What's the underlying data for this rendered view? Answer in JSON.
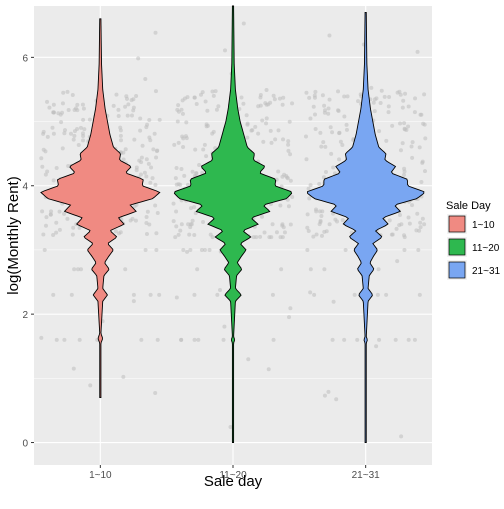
{
  "chart_data": {
    "type": "violin",
    "title": "",
    "xlabel": "Sale day",
    "ylabel": "log(Monthly Rent)",
    "categories": [
      "1~10",
      "11~20",
      "21~31"
    ],
    "ylim": [
      -0.35,
      6.8
    ],
    "yticks": [
      0,
      2,
      4,
      6
    ],
    "grid": true,
    "background": "#EBEBEB",
    "legend": {
      "title": "Sale Day",
      "position": "right",
      "entries": [
        "1~10",
        "11~20",
        "21~31"
      ]
    },
    "series": [
      {
        "category": "1~10",
        "color": "#F08A82",
        "min": 0.7,
        "max": 6.6,
        "width_profile": [
          [
            0.7,
            0.01
          ],
          [
            1.55,
            0.01
          ],
          [
            1.62,
            0.04
          ],
          [
            1.7,
            0.01
          ],
          [
            2.2,
            0.04
          ],
          [
            2.3,
            0.12
          ],
          [
            2.4,
            0.04
          ],
          [
            2.6,
            0.06
          ],
          [
            2.7,
            0.15
          ],
          [
            2.8,
            0.07
          ],
          [
            2.9,
            0.14
          ],
          [
            3.0,
            0.22
          ],
          [
            3.1,
            0.12
          ],
          [
            3.2,
            0.28
          ],
          [
            3.3,
            0.16
          ],
          [
            3.4,
            0.4
          ],
          [
            3.5,
            0.3
          ],
          [
            3.6,
            0.6
          ],
          [
            3.7,
            0.5
          ],
          [
            3.8,
            0.88
          ],
          [
            3.9,
            1.0
          ],
          [
            4.0,
            0.7
          ],
          [
            4.1,
            0.72
          ],
          [
            4.2,
            0.42
          ],
          [
            4.3,
            0.52
          ],
          [
            4.4,
            0.32
          ],
          [
            4.5,
            0.34
          ],
          [
            4.6,
            0.22
          ],
          [
            4.8,
            0.16
          ],
          [
            5.0,
            0.12
          ],
          [
            5.2,
            0.08
          ],
          [
            5.5,
            0.04
          ],
          [
            5.9,
            0.02
          ],
          [
            6.6,
            0.01
          ]
        ]
      },
      {
        "category": "11~20",
        "color": "#2EB84F",
        "min": 0.0,
        "max": 6.8,
        "width_profile": [
          [
            0.0,
            0.01
          ],
          [
            1.55,
            0.01
          ],
          [
            1.6,
            0.03
          ],
          [
            1.65,
            0.01
          ],
          [
            2.2,
            0.04
          ],
          [
            2.3,
            0.14
          ],
          [
            2.4,
            0.04
          ],
          [
            2.6,
            0.06
          ],
          [
            2.7,
            0.15
          ],
          [
            2.8,
            0.07
          ],
          [
            2.9,
            0.14
          ],
          [
            3.0,
            0.22
          ],
          [
            3.1,
            0.12
          ],
          [
            3.2,
            0.3
          ],
          [
            3.3,
            0.16
          ],
          [
            3.4,
            0.42
          ],
          [
            3.5,
            0.3
          ],
          [
            3.6,
            0.62
          ],
          [
            3.7,
            0.5
          ],
          [
            3.8,
            0.9
          ],
          [
            3.9,
            1.0
          ],
          [
            4.0,
            0.7
          ],
          [
            4.1,
            0.72
          ],
          [
            4.2,
            0.44
          ],
          [
            4.3,
            0.54
          ],
          [
            4.4,
            0.34
          ],
          [
            4.5,
            0.36
          ],
          [
            4.6,
            0.24
          ],
          [
            4.8,
            0.18
          ],
          [
            5.0,
            0.12
          ],
          [
            5.2,
            0.08
          ],
          [
            5.5,
            0.04
          ],
          [
            5.9,
            0.02
          ],
          [
            6.8,
            0.01
          ]
        ]
      },
      {
        "category": "21~31",
        "color": "#79A6F2",
        "min": 0.0,
        "max": 6.7,
        "width_profile": [
          [
            0.0,
            0.01
          ],
          [
            1.55,
            0.01
          ],
          [
            1.6,
            0.03
          ],
          [
            1.65,
            0.01
          ],
          [
            2.2,
            0.04
          ],
          [
            2.3,
            0.12
          ],
          [
            2.4,
            0.04
          ],
          [
            2.6,
            0.06
          ],
          [
            2.7,
            0.14
          ],
          [
            2.8,
            0.07
          ],
          [
            2.9,
            0.13
          ],
          [
            3.0,
            0.2
          ],
          [
            3.1,
            0.12
          ],
          [
            3.2,
            0.28
          ],
          [
            3.3,
            0.16
          ],
          [
            3.4,
            0.38
          ],
          [
            3.5,
            0.28
          ],
          [
            3.6,
            0.58
          ],
          [
            3.7,
            0.48
          ],
          [
            3.8,
            0.86
          ],
          [
            3.9,
            1.0
          ],
          [
            4.0,
            0.7
          ],
          [
            4.1,
            0.7
          ],
          [
            4.2,
            0.42
          ],
          [
            4.3,
            0.5
          ],
          [
            4.4,
            0.32
          ],
          [
            4.5,
            0.34
          ],
          [
            4.6,
            0.22
          ],
          [
            4.8,
            0.16
          ],
          [
            5.0,
            0.12
          ],
          [
            5.2,
            0.08
          ],
          [
            5.5,
            0.04
          ],
          [
            5.9,
            0.02
          ],
          [
            6.7,
            0.01
          ]
        ]
      }
    ]
  }
}
